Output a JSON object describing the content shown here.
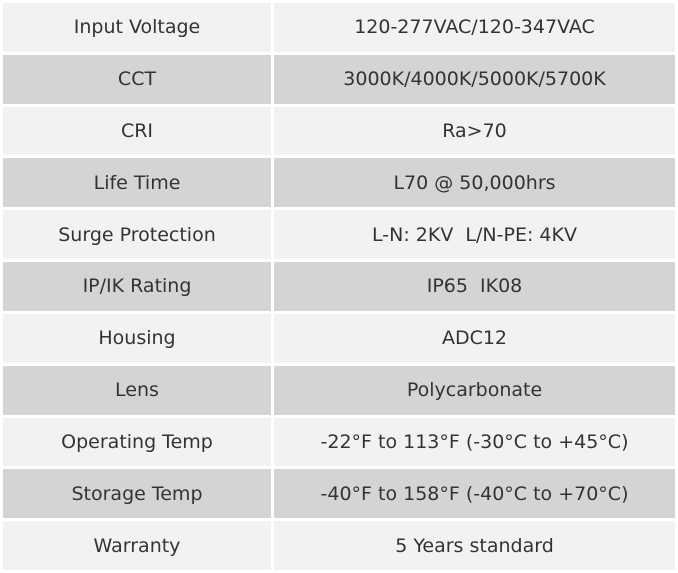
{
  "table": {
    "rows": [
      [
        "Input Voltage",
        "120-277VAC/120-347VAC"
      ],
      [
        "CCT",
        "3000K/4000K/5000K/5700K"
      ],
      [
        "CRI",
        "Ra>70"
      ],
      [
        "Life Time",
        "L70 @ 50,000hrs"
      ],
      [
        "Surge Protection",
        "L-N: 2KV  L/N-PE: 4KV"
      ],
      [
        "IP/IK Rating",
        "IP65  IK08"
      ],
      [
        "Housing",
        "ADC12"
      ],
      [
        "Lens",
        "Polycarbonate"
      ],
      [
        "Operating Temp",
        "-22°F to 113°F (-30°C to +45°C)"
      ],
      [
        "Storage Temp",
        "-40°F to 158°F (-40°C to +70°C)"
      ],
      [
        "Warranty",
        "5 Years standard"
      ]
    ]
  }
}
